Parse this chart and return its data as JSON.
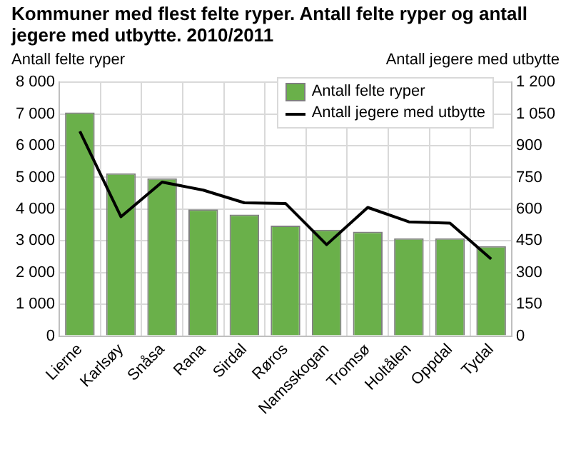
{
  "chart_data": {
    "type": "bar",
    "title": "Kommuner med flest felte ryper. Antall felte ryper og antall jegere med utbytte. 2010/2011",
    "ylabel": "Antall felte ryper",
    "y2label": "Antall jegere med utbytte",
    "categories": [
      "Lierne",
      "Karlsøy",
      "Snåsa",
      "Rana",
      "Sirdal",
      "Røros",
      "Namsskogan",
      "Tromsø",
      "Holtålen",
      "Oppdal",
      "Tydal"
    ],
    "series": [
      {
        "name": "Antall felte ryper",
        "color": "#6ab04a",
        "values": [
          7050,
          5130,
          4970,
          3990,
          3830,
          3480,
          3350,
          3290,
          3080,
          3080,
          2830
        ]
      },
      {
        "name": "Antall jegere med utbytte",
        "type": "line",
        "axis": "y2",
        "color": "#000000",
        "values": [
          968,
          564,
          728,
          690,
          630,
          627,
          432,
          608,
          540,
          534,
          364
        ]
      }
    ],
    "ylim": [
      0,
      8000
    ],
    "yticks": [
      0,
      {
        "value": 1000,
        "label": "1 000"
      },
      {
        "value": 2000,
        "label": "2 000"
      },
      {
        "value": 3000,
        "label": "3 000"
      },
      {
        "value": 4000,
        "label": "4 000"
      },
      {
        "value": 5000,
        "label": "5 000"
      },
      {
        "value": 6000,
        "label": "6 000"
      },
      {
        "value": 7000,
        "label": "7 000"
      },
      {
        "value": 8000,
        "label": "8 000"
      }
    ],
    "y2lim": [
      0,
      1200
    ],
    "y2ticks": [
      0,
      150,
      300,
      450,
      600,
      750,
      900,
      {
        "value": 1050,
        "label": "1 050"
      },
      {
        "value": 1200,
        "label": "1 200"
      }
    ],
    "grid": true,
    "legend": "top right",
    "marker": "none",
    "line_style": "solid"
  }
}
